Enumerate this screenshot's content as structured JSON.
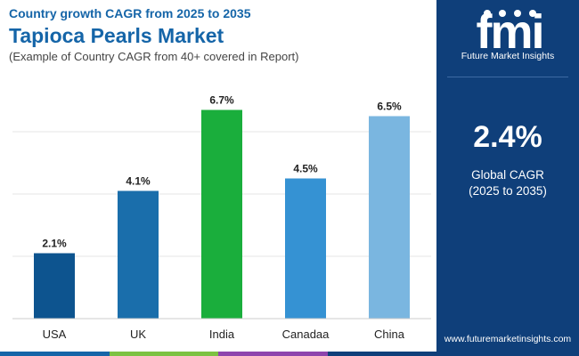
{
  "header": {
    "kicker": "Country growth CAGR from 2025 to 2035",
    "title": "Tapioca Pearls Market",
    "subtitle": "(Example of Country CAGR from 40+ covered in Report)"
  },
  "brand": {
    "logo_text": "fmi",
    "name": "Future Market Insights",
    "website": "www.futuremarketinsights.com"
  },
  "summary": {
    "value": "2.4%",
    "label": "Global CAGR",
    "period": "(2025 to 2035)"
  },
  "colors": {
    "panel": "#0f3f7a",
    "strip": [
      "#1565a8",
      "#7cc242",
      "#8e44ad",
      "#0f3f7a"
    ]
  },
  "chart_data": {
    "type": "bar",
    "categories": [
      "USA",
      "UK",
      "India",
      "Canadaa",
      "China"
    ],
    "values": [
      2.1,
      4.1,
      6.7,
      4.5,
      6.5
    ],
    "value_labels": [
      "2.1%",
      "4.1%",
      "6.7%",
      "4.5%",
      "6.5%"
    ],
    "colors": [
      "#0d548f",
      "#1a6eab",
      "#1aae3c",
      "#3592d3",
      "#7ab6e0"
    ],
    "title": "Tapioca Pearls Market",
    "ylim": [
      0,
      8
    ],
    "grid": true,
    "legend": "none"
  }
}
